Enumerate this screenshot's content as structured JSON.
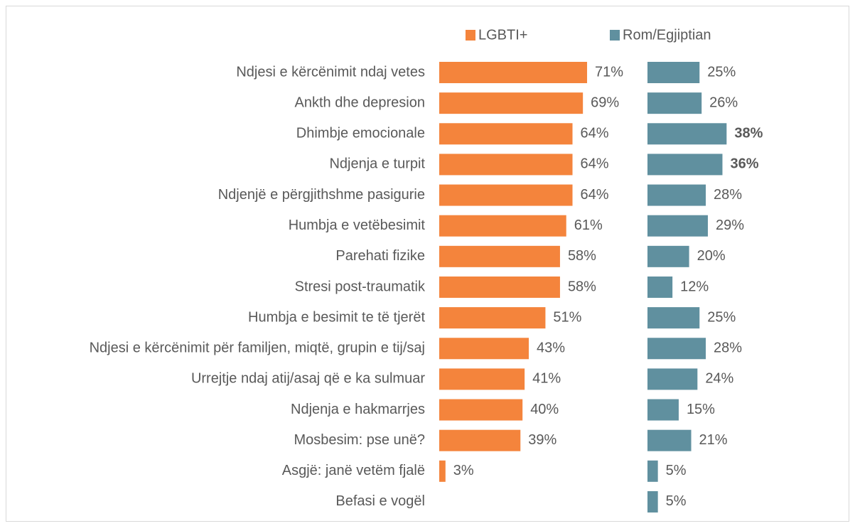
{
  "chart_data": {
    "type": "bar",
    "orientation": "horizontal",
    "layout": "panels",
    "categories": [
      "Ndjesi e kërcënimit ndaj vetes",
      "Ankth dhe depresion",
      "Dhimbje emocionale",
      "Ndjenja e turpit",
      "Ndjenjë e përgjithshme pasigurie",
      "Humbja e vetëbesimit",
      "Parehati fizike",
      "Stresi post-traumatik",
      "Humbja e besimit te të tjerët",
      "Ndjesi e kërcënimit për familjen, miqtë, grupin e tij/saj",
      "Urrejtje ndaj atij/asaj që e ka sulmuar",
      "Ndjenja e hakmarrjes",
      "Mosbesim: pse unë?",
      "Asgjë: janë vetëm fjalë",
      "Befasi e vogël"
    ],
    "series": [
      {
        "name": "LGBTI+",
        "color": "#f4843c",
        "values": [
          71,
          69,
          64,
          64,
          64,
          61,
          58,
          58,
          51,
          43,
          41,
          40,
          39,
          3,
          null
        ],
        "value_labels": [
          "71%",
          "69%",
          "64%",
          "64%",
          "64%",
          "61%",
          "58%",
          "58%",
          "51%",
          "43%",
          "41%",
          "40%",
          "39%",
          "3%",
          null
        ],
        "bold": [
          false,
          false,
          false,
          false,
          false,
          false,
          false,
          false,
          false,
          false,
          false,
          false,
          false,
          false,
          false
        ]
      },
      {
        "name": "Rom/Egjiptian",
        "color": "#60909f",
        "values": [
          25,
          26,
          38,
          36,
          28,
          29,
          20,
          12,
          25,
          28,
          24,
          15,
          21,
          5,
          5
        ],
        "value_labels": [
          "25%",
          "26%",
          "38%",
          "36%",
          "28%",
          "29%",
          "20%",
          "12%",
          "25%",
          "28%",
          "24%",
          "15%",
          "21%",
          "5%",
          "5%"
        ],
        "bold": [
          false,
          false,
          true,
          true,
          false,
          false,
          false,
          false,
          false,
          false,
          false,
          false,
          false,
          false,
          false
        ]
      }
    ],
    "legend": "top"
  }
}
